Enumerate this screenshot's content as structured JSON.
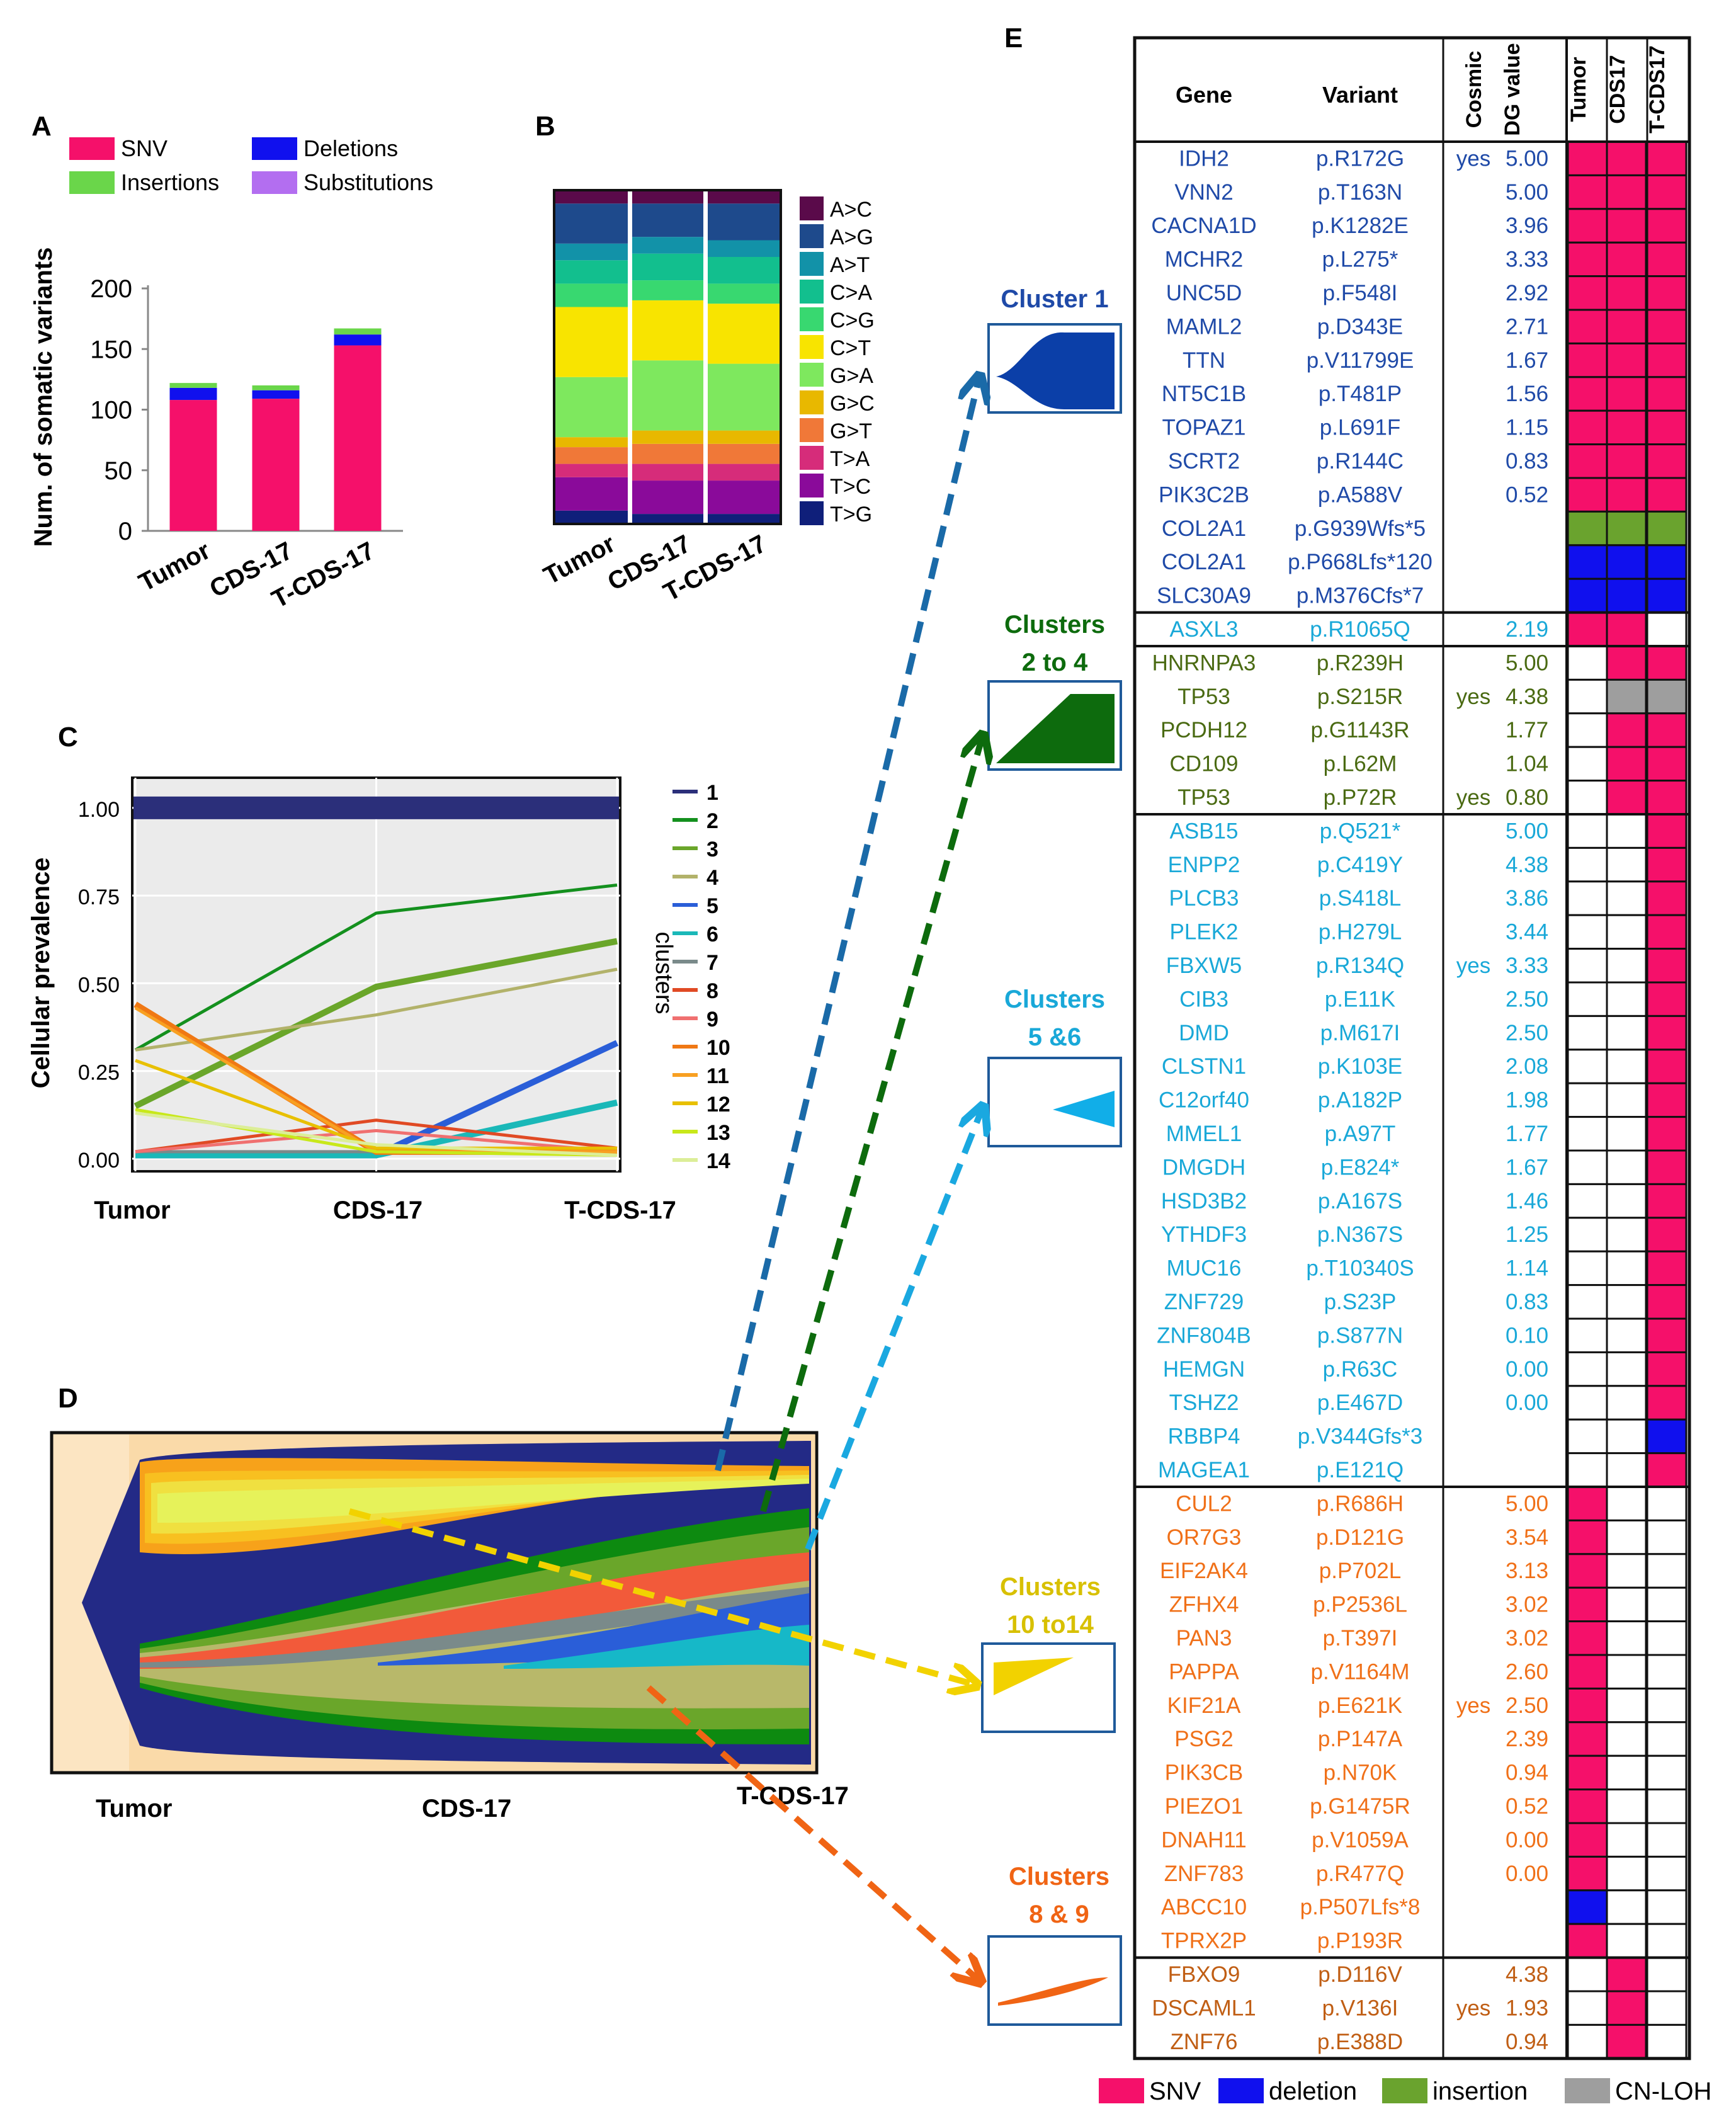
{
  "colors": {
    "snv": "#f5106a",
    "deletion": "#1010ee",
    "insertion": "#6aa32e",
    "cnloh": "#9e9e9e",
    "c1": "#0b3fa8",
    "c2": "#0d6b0d",
    "c56": "#11aee8",
    "c1014": "#f2d200",
    "c89": "#f06414",
    "blueText": "#1f4aa8",
    "greenText": "#4a6a12",
    "cyanText": "#19a8d8",
    "orangeText": "#f07018",
    "brownText": "#c05e14"
  },
  "panels": {
    "a": "A",
    "b": "B",
    "c": "C",
    "d": "D",
    "e": "E"
  },
  "chart_data": [
    {
      "id": "A",
      "type": "bar",
      "stacked": true,
      "categories": [
        "Tumor",
        "CDS-17",
        "T-CDS-17"
      ],
      "ylabel": "Num. of somatic variants",
      "ylim": [
        0,
        200
      ],
      "yticks": [
        0,
        50,
        100,
        150,
        200
      ],
      "series": [
        {
          "name": "SNV",
          "color": "#f5106a",
          "values": [
            108,
            109,
            153
          ]
        },
        {
          "name": "Deletions",
          "color": "#1010ee",
          "values": [
            10,
            7,
            9
          ]
        },
        {
          "name": "Insertions",
          "color": "#6ad64a",
          "values": [
            4,
            4,
            5
          ]
        },
        {
          "name": "Substitutions",
          "color": "#b36ef0",
          "values": [
            0,
            0,
            0
          ]
        }
      ],
      "legend": [
        "SNV",
        "Deletions",
        "Insertions",
        "Substitutions"
      ]
    },
    {
      "id": "B",
      "type": "bar",
      "stacked": true,
      "normalized": true,
      "categories": [
        "Tumor",
        "CDS-17",
        "T-CDS-17"
      ],
      "series": [
        {
          "name": "T>G",
          "color": "#0f1f7a",
          "values": [
            0.04,
            0.03,
            0.03
          ]
        },
        {
          "name": "T>C",
          "color": "#8a0a9a",
          "values": [
            0.1,
            0.1,
            0.1
          ]
        },
        {
          "name": "T>A",
          "color": "#d62c7a",
          "values": [
            0.04,
            0.05,
            0.05
          ]
        },
        {
          "name": "G>T",
          "color": "#f07838",
          "values": [
            0.05,
            0.06,
            0.06
          ]
        },
        {
          "name": "G>C",
          "color": "#e8b800",
          "values": [
            0.03,
            0.04,
            0.04
          ]
        },
        {
          "name": "G>A",
          "color": "#7ee85e",
          "values": [
            0.18,
            0.21,
            0.2
          ]
        },
        {
          "name": "C>T",
          "color": "#f8e400",
          "values": [
            0.21,
            0.18,
            0.18
          ]
        },
        {
          "name": "C>G",
          "color": "#38d870",
          "values": [
            0.07,
            0.06,
            0.06
          ]
        },
        {
          "name": "C>A",
          "color": "#12bf8e",
          "values": [
            0.07,
            0.08,
            0.08
          ]
        },
        {
          "name": "A>T",
          "color": "#1292a8",
          "values": [
            0.05,
            0.05,
            0.05
          ]
        },
        {
          "name": "A>G",
          "color": "#1e4a8c",
          "values": [
            0.12,
            0.1,
            0.11
          ]
        },
        {
          "name": "A>C",
          "color": "#5a0a4a",
          "values": [
            0.04,
            0.04,
            0.04
          ]
        }
      ],
      "legend": [
        "A>C",
        "A>G",
        "A>T",
        "C>A",
        "C>G",
        "C>T",
        "G>A",
        "G>C",
        "G>T",
        "T>A",
        "T>C",
        "T>G"
      ]
    },
    {
      "id": "C",
      "type": "line",
      "x": [
        "Tumor",
        "CDS-17",
        "T-CDS-17"
      ],
      "ylabel": "Cellular prevalence",
      "ylim": [
        0,
        1.05
      ],
      "yticks": [
        "0.00",
        "0.25",
        "0.50",
        "0.75",
        "1.00"
      ],
      "legend_title": "clusters",
      "series": [
        {
          "name": "1",
          "color": "#2b2f7a",
          "values": [
            1.0,
            1.0,
            1.0
          ]
        },
        {
          "name": "2",
          "color": "#14901e",
          "values": [
            0.31,
            0.7,
            0.78
          ]
        },
        {
          "name": "3",
          "color": "#6aa62a",
          "values": [
            0.15,
            0.49,
            0.62
          ]
        },
        {
          "name": "4",
          "color": "#b2b26a",
          "values": [
            0.31,
            0.41,
            0.54
          ]
        },
        {
          "name": "5",
          "color": "#2a5ed8",
          "values": [
            0.01,
            0.01,
            0.33
          ]
        },
        {
          "name": "6",
          "color": "#1ab8b8",
          "values": [
            0.01,
            0.01,
            0.16
          ]
        },
        {
          "name": "7",
          "color": "#7a8a8a",
          "values": [
            0.02,
            0.02,
            0.02
          ]
        },
        {
          "name": "8",
          "color": "#e04a24",
          "values": [
            0.02,
            0.11,
            0.03
          ]
        },
        {
          "name": "9",
          "color": "#f07070",
          "values": [
            0.02,
            0.08,
            0.02
          ]
        },
        {
          "name": "10",
          "color": "#f07814",
          "values": [
            0.44,
            0.02,
            0.02
          ]
        },
        {
          "name": "11",
          "color": "#f8a022",
          "values": [
            0.43,
            0.02,
            0.02
          ]
        },
        {
          "name": "12",
          "color": "#e8c000",
          "values": [
            0.28,
            0.03,
            0.03
          ]
        },
        {
          "name": "13",
          "color": "#c8e81a",
          "values": [
            0.14,
            0.02,
            0.01
          ]
        },
        {
          "name": "14",
          "color": "#dcee98",
          "values": [
            0.13,
            0.04,
            0.01
          ]
        }
      ]
    }
  ],
  "fishplot": {
    "labels": [
      "Tumor",
      "CDS-17",
      "T-CDS-17"
    ]
  },
  "callouts": [
    {
      "id": "c1",
      "line1": "Cluster 1",
      "line2": ""
    },
    {
      "id": "c24",
      "line1": "Clusters",
      "line2": "2 to 4"
    },
    {
      "id": "c56",
      "line1": "Clusters",
      "line2": "5 &6"
    },
    {
      "id": "c1014",
      "line1": "Clusters",
      "line2": "10 to14"
    },
    {
      "id": "c89",
      "line1": "Clusters",
      "line2": "8 & 9"
    }
  ],
  "table": {
    "headers": {
      "gene": "Gene",
      "variant": "Variant",
      "cosmic": "Cosmic",
      "dg": "DG value",
      "tumor": "Tumor",
      "cds17": "CDS17",
      "tcds17": "T-CDS17"
    },
    "groups": [
      {
        "color": "#1f4aa8",
        "rows": [
          [
            "IDH2",
            "p.R172G",
            "yes",
            "5.00",
            "S",
            "S",
            "S"
          ],
          [
            "VNN2",
            "p.T163N",
            "",
            "5.00",
            "S",
            "S",
            "S"
          ],
          [
            "CACNA1D",
            "p.K1282E",
            "",
            "3.96",
            "S",
            "S",
            "S"
          ],
          [
            "MCHR2",
            "p.L275*",
            "",
            "3.33",
            "S",
            "S",
            "S"
          ],
          [
            "UNC5D",
            "p.F548I",
            "",
            "2.92",
            "S",
            "S",
            "S"
          ],
          [
            "MAML2",
            "p.D343E",
            "",
            "2.71",
            "S",
            "S",
            "S"
          ],
          [
            "TTN",
            "p.V11799E",
            "",
            "1.67",
            "S",
            "S",
            "S"
          ],
          [
            "NT5C1B",
            "p.T481P",
            "",
            "1.56",
            "S",
            "S",
            "S"
          ],
          [
            "TOPAZ1",
            "p.L691F",
            "",
            "1.15",
            "S",
            "S",
            "S"
          ],
          [
            "SCRT2",
            "p.R144C",
            "",
            "0.83",
            "S",
            "S",
            "S"
          ],
          [
            "PIK3C2B",
            "p.A588V",
            "",
            "0.52",
            "S",
            "S",
            "S"
          ],
          [
            "COL2A1",
            "p.G939Wfs*5",
            "",
            "",
            "I",
            "I",
            "I"
          ],
          [
            "COL2A1",
            "p.P668Lfs*120",
            "",
            "",
            "D",
            "D",
            "D"
          ],
          [
            "SLC30A9",
            "p.M376Cfs*7",
            "",
            "",
            "D",
            "D",
            "D"
          ]
        ]
      },
      {
        "color": "#19a8d8",
        "rows": [
          [
            "ASXL3",
            "p.R1065Q",
            "",
            "2.19",
            "S",
            "S",
            ""
          ]
        ]
      },
      {
        "color": "#4a6a12",
        "rows": [
          [
            "HNRNPA3",
            "p.R239H",
            "",
            "5.00",
            "",
            "S",
            "S"
          ],
          [
            "TP53",
            "p.S215R",
            "yes",
            "4.38",
            "",
            "C",
            "C"
          ],
          [
            "PCDH12",
            "p.G1143R",
            "",
            "1.77",
            "",
            "S",
            "S"
          ],
          [
            "CD109",
            "p.L62M",
            "",
            "1.04",
            "",
            "S",
            "S"
          ],
          [
            "TP53",
            "p.P72R",
            "yes",
            "0.80",
            "",
            "S",
            "S"
          ]
        ]
      },
      {
        "color": "#19a8d8",
        "rows": [
          [
            "ASB15",
            "p.Q521*",
            "",
            "5.00",
            "",
            "",
            "S"
          ],
          [
            "ENPP2",
            "p.C419Y",
            "",
            "4.38",
            "",
            "",
            "S"
          ],
          [
            "PLCB3",
            "p.S418L",
            "",
            "3.86",
            "",
            "",
            "S"
          ],
          [
            "PLEK2",
            "p.H279L",
            "",
            "3.44",
            "",
            "",
            "S"
          ],
          [
            "FBXW5",
            "p.R134Q",
            "yes",
            "3.33",
            "",
            "",
            "S"
          ],
          [
            "CIB3",
            "p.E11K",
            "",
            "2.50",
            "",
            "",
            "S"
          ],
          [
            "DMD",
            "p.M617I",
            "",
            "2.50",
            "",
            "",
            "S"
          ],
          [
            "CLSTN1",
            "p.K103E",
            "",
            "2.08",
            "",
            "",
            "S"
          ],
          [
            "C12orf40",
            "p.A182P",
            "",
            "1.98",
            "",
            "",
            "S"
          ],
          [
            "MMEL1",
            "p.A97T",
            "",
            "1.77",
            "",
            "",
            "S"
          ],
          [
            "DMGDH",
            "p.E824*",
            "",
            "1.67",
            "",
            "",
            "S"
          ],
          [
            "HSD3B2",
            "p.A167S",
            "",
            "1.46",
            "",
            "",
            "S"
          ],
          [
            "YTHDF3",
            "p.N367S",
            "",
            "1.25",
            "",
            "",
            "S"
          ],
          [
            "MUC16",
            "p.T10340S",
            "",
            "1.14",
            "",
            "",
            "S"
          ],
          [
            "ZNF729",
            "p.S23P",
            "",
            "0.83",
            "",
            "",
            "S"
          ],
          [
            "ZNF804B",
            "p.S877N",
            "",
            "0.10",
            "",
            "",
            "S"
          ],
          [
            "HEMGN",
            "p.R63C",
            "",
            "0.00",
            "",
            "",
            "S"
          ],
          [
            "TSHZ2",
            "p.E467D",
            "",
            "0.00",
            "",
            "",
            "S"
          ],
          [
            "RBBP4",
            "p.V344Gfs*3",
            "",
            "",
            "",
            "",
            "D"
          ],
          [
            "MAGEA1",
            "p.E121Q",
            "",
            "",
            "",
            "",
            "S"
          ]
        ]
      },
      {
        "color": "#f07018",
        "rows": [
          [
            "CUL2",
            "p.R686H",
            "",
            "5.00",
            "S",
            "",
            ""
          ],
          [
            "OR7G3",
            "p.D121G",
            "",
            "3.54",
            "S",
            "",
            ""
          ],
          [
            "EIF2AK4",
            "p.P702L",
            "",
            "3.13",
            "S",
            "",
            ""
          ],
          [
            "ZFHX4",
            "p.P2536L",
            "",
            "3.02",
            "S",
            "",
            ""
          ],
          [
            "PAN3",
            "p.T397I",
            "",
            "3.02",
            "S",
            "",
            ""
          ],
          [
            "PAPPA",
            "p.V1164M",
            "",
            "2.60",
            "S",
            "",
            ""
          ],
          [
            "KIF21A",
            "p.E621K",
            "yes",
            "2.50",
            "S",
            "",
            ""
          ],
          [
            "PSG2",
            "p.P147A",
            "",
            "2.39",
            "S",
            "",
            ""
          ],
          [
            "PIK3CB",
            "p.N70K",
            "",
            "0.94",
            "S",
            "",
            ""
          ],
          [
            "PIEZO1",
            "p.G1475R",
            "",
            "0.52",
            "S",
            "",
            ""
          ],
          [
            "DNAH11",
            "p.V1059A",
            "",
            "0.00",
            "S",
            "",
            ""
          ],
          [
            "ZNF783",
            "p.R477Q",
            "",
            "0.00",
            "S",
            "",
            ""
          ],
          [
            "ABCC10",
            "p.P507Lfs*8",
            "",
            "",
            "D",
            "",
            ""
          ],
          [
            "TPRX2P",
            "p.P193R",
            "",
            "",
            "S",
            "",
            ""
          ]
        ]
      },
      {
        "color": "#c05e14",
        "rows": [
          [
            "FBXO9",
            "p.D116V",
            "",
            "4.38",
            "",
            "S",
            ""
          ],
          [
            "DSCAML1",
            "p.V136I",
            "yes",
            "1.93",
            "",
            "S",
            ""
          ],
          [
            "ZNF76",
            "p.E388D",
            "",
            "0.94",
            "",
            "S",
            ""
          ]
        ]
      }
    ]
  },
  "table_legend": [
    {
      "label": "SNV",
      "code": "S"
    },
    {
      "label": "deletion",
      "code": "D"
    },
    {
      "label": "insertion",
      "code": "I"
    },
    {
      "label": "CN-LOH",
      "code": "C"
    }
  ]
}
